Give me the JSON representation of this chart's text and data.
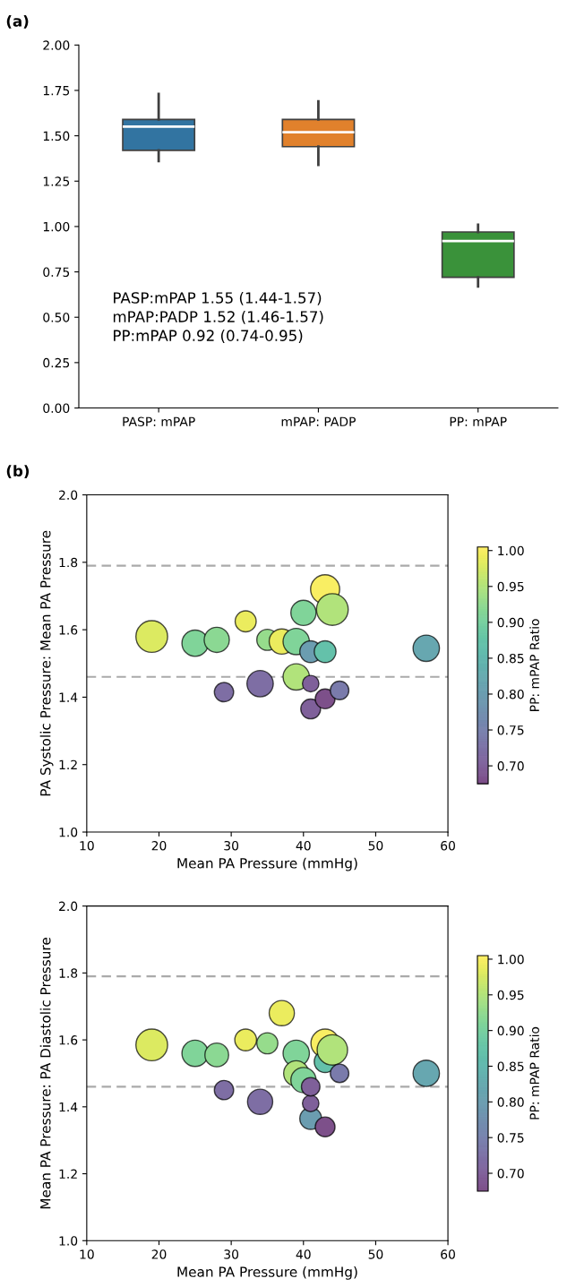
{
  "chart_data": [
    {
      "type": "box",
      "title": "(a)",
      "categories": [
        "PASP: mPAP",
        "mPAP: PADP",
        "PP: mPAP"
      ],
      "colors": [
        "#3274a1",
        "#e1812c",
        "#3a923a"
      ],
      "boxes": [
        {
          "low": 1.36,
          "q1": 1.42,
          "median": 1.55,
          "q3": 1.59,
          "high": 1.73
        },
        {
          "low": 1.34,
          "q1": 1.44,
          "median": 1.52,
          "q3": 1.59,
          "high": 1.69
        },
        {
          "low": 0.67,
          "q1": 0.72,
          "median": 0.92,
          "q3": 0.97,
          "high": 1.01
        }
      ],
      "ylim": [
        0,
        2
      ],
      "yticks": [
        {
          "value": 0,
          "label": "0.00"
        },
        {
          "value": 0.25,
          "label": "0.25"
        },
        {
          "value": 0.5,
          "label": "0.50"
        },
        {
          "value": 0.75,
          "label": "0.75"
        },
        {
          "value": 1,
          "label": "1.00"
        },
        {
          "value": 1.25,
          "label": "1.25"
        },
        {
          "value": 1.5,
          "label": "1.50"
        },
        {
          "value": 1.75,
          "label": "1.75"
        },
        {
          "value": 2,
          "label": "2.00"
        }
      ],
      "annotations": [
        "PASP:mPAP 1.55 (1.44-1.57)",
        "mPAP:PADP 1.52 (1.46-1.57)",
        "PP:mPAP 0.92 (0.74-0.95)"
      ],
      "grid": false
    },
    {
      "type": "bubble",
      "title": "(b)",
      "xlabel": "Mean PA Pressure (mmHg)",
      "ylabel": "PA Systolic Pressure: Mean PA Pressure",
      "clabel": "PP: mPAP Ratio",
      "x": [
        19,
        25,
        28,
        29,
        32,
        34,
        35,
        37,
        39,
        39,
        40,
        41,
        41,
        41,
        43,
        43,
        43,
        44,
        45,
        57
      ],
      "values": [
        1.58,
        1.56,
        1.57,
        1.415,
        1.625,
        1.44,
        1.57,
        1.565,
        1.565,
        1.46,
        1.65,
        1.535,
        1.44,
        1.365,
        1.72,
        1.535,
        1.395,
        1.66,
        1.42,
        1.545
      ],
      "sizes": [
        1,
        0.69,
        0.63,
        0.37,
        0.44,
        0.69,
        0.44,
        0.63,
        0.69,
        0.69,
        0.63,
        0.47,
        0.27,
        0.39,
        0.84,
        0.47,
        0.39,
        1,
        0.34,
        0.69
      ],
      "cvalues": [
        0.98,
        0.91,
        0.92,
        0.72,
        0.99,
        0.72,
        0.93,
        0.99,
        0.91,
        0.95,
        0.91,
        0.8,
        0.7,
        0.7,
        1.0,
        0.87,
        0.68,
        0.95,
        0.74,
        0.82
      ],
      "clim": [
        0.675,
        1.005
      ],
      "cticks": [
        {
          "value": 0.7,
          "label": "0.70"
        },
        {
          "value": 0.75,
          "label": "0.75"
        },
        {
          "value": 0.8,
          "label": "0.80"
        },
        {
          "value": 0.85,
          "label": "0.85"
        },
        {
          "value": 0.9,
          "label": "0.90"
        },
        {
          "value": 0.95,
          "label": "0.95"
        },
        {
          "value": 1.0,
          "label": "1.00"
        }
      ],
      "xlim": [
        10,
        60
      ],
      "xticks": [
        10,
        20,
        30,
        40,
        50,
        60
      ],
      "ylim": [
        1.0,
        2.0
      ],
      "yticks": [
        {
          "value": 1.0,
          "label": "1.0"
        },
        {
          "value": 1.2,
          "label": "1.2"
        },
        {
          "value": 1.4,
          "label": "1.4"
        },
        {
          "value": 1.6,
          "label": "1.6"
        },
        {
          "value": 1.8,
          "label": "1.8"
        },
        {
          "value": 2.0,
          "label": "2.0"
        }
      ],
      "ref_lines": [
        {
          "axis": "y",
          "value": 1.79,
          "color": "#aaaaaa",
          "line_style": "dashed"
        },
        {
          "axis": "y",
          "value": 1.46,
          "color": "#aaaaaa",
          "line_style": "dashed"
        }
      ],
      "grid": false
    },
    {
      "type": "bubble",
      "xlabel": "Mean PA Pressure (mmHg)",
      "ylabel": "Mean PA Pressure: PA Diastolic Pressure",
      "clabel": "PP: mPAP Ratio",
      "x": [
        19,
        25,
        28,
        29,
        32,
        34,
        35,
        37,
        39,
        39,
        40,
        41,
        41,
        41,
        43,
        43,
        43,
        44,
        45,
        57
      ],
      "values": [
        1.585,
        1.56,
        1.555,
        1.45,
        1.6,
        1.415,
        1.59,
        1.68,
        1.56,
        1.5,
        1.48,
        1.365,
        1.41,
        1.46,
        1.59,
        1.535,
        1.34,
        1.57,
        1.5,
        1.5
      ],
      "sizes": [
        1,
        0.69,
        0.56,
        0.37,
        0.47,
        0.63,
        0.44,
        0.63,
        0.69,
        0.63,
        0.63,
        0.47,
        0.27,
        0.34,
        0.8,
        0.47,
        0.39,
        0.92,
        0.34,
        0.69
      ],
      "cvalues": [
        0.98,
        0.91,
        0.92,
        0.72,
        0.99,
        0.72,
        0.93,
        0.99,
        0.91,
        0.95,
        0.91,
        0.8,
        0.7,
        0.7,
        1.0,
        0.87,
        0.68,
        0.95,
        0.74,
        0.82
      ],
      "clim": [
        0.675,
        1.005
      ],
      "cticks": [
        {
          "value": 0.7,
          "label": "0.70"
        },
        {
          "value": 0.75,
          "label": "0.75"
        },
        {
          "value": 0.8,
          "label": "0.80"
        },
        {
          "value": 0.85,
          "label": "0.85"
        },
        {
          "value": 0.9,
          "label": "0.90"
        },
        {
          "value": 0.95,
          "label": "0.95"
        },
        {
          "value": 1.0,
          "label": "1.00"
        }
      ],
      "xlim": [
        10,
        60
      ],
      "xticks": [
        10,
        20,
        30,
        40,
        50,
        60
      ],
      "ylim": [
        1.0,
        2.0
      ],
      "yticks": [
        {
          "value": 1.0,
          "label": "1.0"
        },
        {
          "value": 1.2,
          "label": "1.2"
        },
        {
          "value": 1.4,
          "label": "1.4"
        },
        {
          "value": 1.6,
          "label": "1.6"
        },
        {
          "value": 1.8,
          "label": "1.8"
        },
        {
          "value": 2.0,
          "label": "2.0"
        }
      ],
      "ref_lines": [
        {
          "axis": "y",
          "value": 1.79,
          "color": "#aaaaaa",
          "line_style": "dashed"
        },
        {
          "axis": "y",
          "value": 1.46,
          "color": "#aaaaaa",
          "line_style": "dashed"
        }
      ],
      "grid": false
    }
  ]
}
